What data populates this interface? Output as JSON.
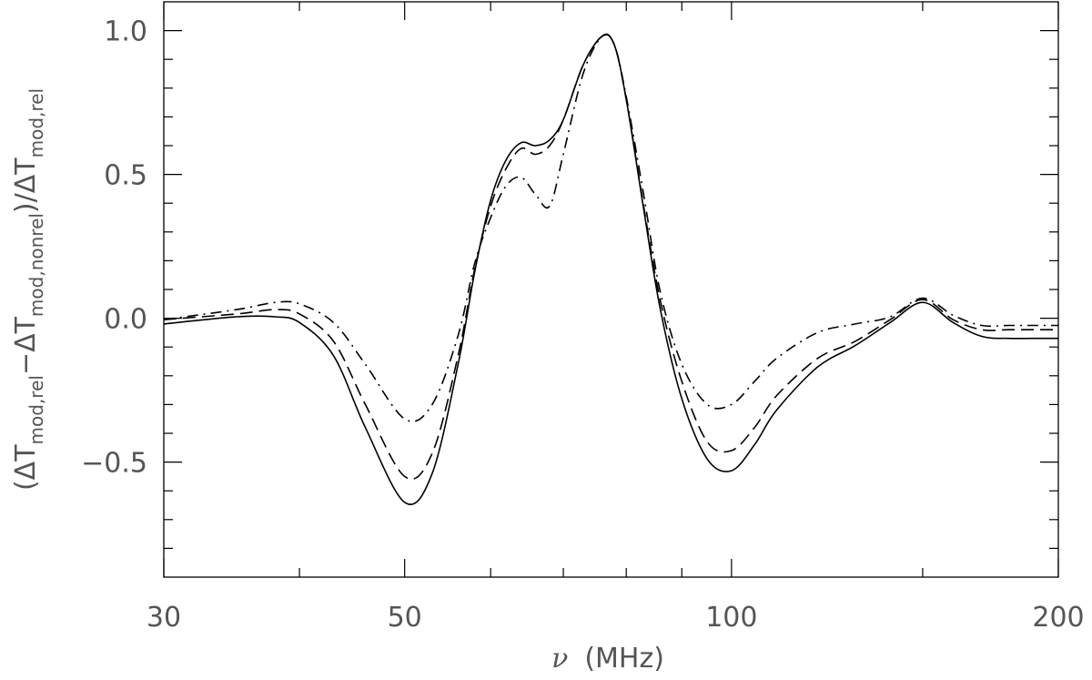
{
  "chart_data": {
    "type": "line",
    "xlabel": [
      "ν",
      "(MHz)"
    ],
    "ylabel": [
      "(ΔT",
      "mod,rel",
      "−ΔT",
      "mod,nonrel",
      ")/ΔT",
      "mod,rel"
    ],
    "xscale": "log",
    "xlim": [
      30,
      200
    ],
    "xticks": [
      30,
      50,
      100,
      200
    ],
    "x_minor_ticks": [
      40,
      60,
      70,
      80,
      90,
      150
    ],
    "ylim": [
      -0.9,
      1.1
    ],
    "yticks": [
      {
        "value": -0.5,
        "label": "−0.5"
      },
      {
        "value": 0,
        "label": "0.0"
      },
      0.5,
      {
        "value": 1,
        "label": "1.0"
      }
    ],
    "y_minor_ticks": [
      -0.8,
      -0.7,
      -0.6,
      -0.4,
      -0.3,
      -0.2,
      -0.1,
      0.1,
      0.2,
      0.3,
      0.4,
      0.6,
      0.7,
      0.8,
      0.9
    ],
    "x": [
      30,
      35,
      38,
      40,
      43,
      46,
      50,
      53,
      56,
      58,
      60,
      62,
      64,
      66,
      68,
      70,
      73,
      76,
      78,
      80,
      83,
      86,
      90,
      95,
      100,
      105,
      110,
      120,
      130,
      140,
      150,
      160,
      170,
      180,
      190,
      200
    ],
    "series": [
      {
        "color": "#000000",
        "dash": "solid",
        "values": [
          -0.02,
          0.005,
          0.005,
          -0.015,
          -0.13,
          -0.38,
          -0.64,
          -0.54,
          -0.16,
          0.16,
          0.41,
          0.55,
          0.61,
          0.6,
          0.62,
          0.69,
          0.88,
          0.98,
          0.95,
          0.76,
          0.38,
          0.03,
          -0.28,
          -0.49,
          -0.53,
          -0.44,
          -0.32,
          -0.17,
          -0.095,
          -0.015,
          0.055,
          -0.015,
          -0.063,
          -0.07,
          -0.07,
          -0.07
        ]
      },
      {
        "color": "#000000",
        "dash": "dashed",
        "values": [
          -0.005,
          0.015,
          0.03,
          0.015,
          -0.08,
          -0.3,
          -0.55,
          -0.47,
          -0.13,
          0.17,
          0.39,
          0.52,
          0.59,
          0.57,
          0.6,
          0.69,
          0.88,
          0.98,
          0.95,
          0.76,
          0.39,
          0.06,
          -0.22,
          -0.43,
          -0.46,
          -0.38,
          -0.27,
          -0.14,
          -0.08,
          -0.005,
          0.065,
          -0.005,
          -0.04,
          -0.04,
          -0.04,
          -0.04
        ]
      },
      {
        "color": "#000000",
        "dash": "dashdot",
        "values": [
          -0.005,
          0.03,
          0.055,
          0.05,
          -0.015,
          -0.16,
          -0.35,
          -0.3,
          -0.06,
          0.19,
          0.35,
          0.46,
          0.49,
          0.43,
          0.39,
          0.57,
          0.85,
          0.98,
          0.95,
          0.77,
          0.43,
          0.09,
          -0.16,
          -0.3,
          -0.3,
          -0.22,
          -0.14,
          -0.05,
          -0.02,
          0.005,
          0.07,
          0.01,
          -0.025,
          -0.025,
          -0.025,
          -0.025
        ]
      }
    ]
  }
}
